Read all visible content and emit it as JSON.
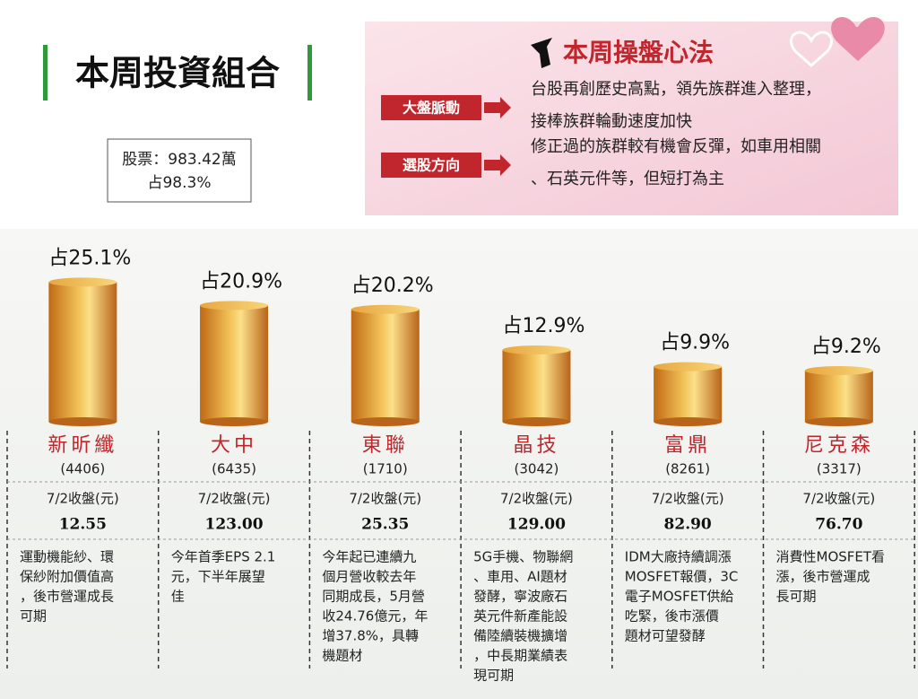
{
  "header": {
    "title": "本周投資組合",
    "stock_line": "股票：983.42萬",
    "share_line": "占98.3%"
  },
  "panel": {
    "title": "本周操盤心法",
    "items": [
      {
        "label": "大盤脈動",
        "lines": [
          "台股再創歷史高點，領先族群進入整理，",
          "接棒族群輪動速度加快"
        ]
      },
      {
        "label": "選股方向",
        "lines": [
          "修正過的族群較有機會反彈，如車用相關",
          "、石英元件等，但短打為主"
        ]
      }
    ]
  },
  "chart_data": {
    "type": "bar",
    "color": "#d9902a",
    "categories": [
      "新昕纖",
      "大中",
      "東聯",
      "晶技",
      "富鼎",
      "尼克森"
    ],
    "values": [
      25.1,
      20.9,
      20.2,
      12.9,
      9.9,
      9.2
    ],
    "value_labels": [
      "占25.1%",
      "占20.9%",
      "占20.2%",
      "占12.9%",
      "占9.9%",
      "占9.2%"
    ]
  },
  "table": {
    "price_header": "7/2收盤(元)",
    "codes": [
      "(4406)",
      "(6435)",
      "(1710)",
      "(3042)",
      "(8261)",
      "(3317)"
    ],
    "prices": [
      "12.55",
      "123.00",
      "25.35",
      "129.00",
      "82.90",
      "76.70"
    ],
    "notes": [
      [
        "運動機能紗、環",
        "保紗附加價值高",
        "，後市營運成長",
        "可期"
      ],
      [
        "今年首季EPS 2.1",
        "元，下半年展望",
        "佳"
      ],
      [
        "今年起已連續九",
        "個月營收較去年",
        "同期成長，5月營",
        "收24.76億元，年",
        "增37.8%，具轉",
        "機題材"
      ],
      [
        "5G手機、物聯網",
        "、車用、AI題材",
        "發酵，寧波廠石",
        "英元件新產能設",
        "備陸續裝機擴增",
        "，中長期業績表",
        "現可期"
      ],
      [
        "IDM大廠持續調漲",
        "MOSFET報價，3C",
        "電子MOSFET供給",
        "吃緊，後市漲價",
        "題材可望發酵"
      ],
      [
        "消費性MOSFET看",
        "漲，後市營運成",
        "長可期"
      ]
    ]
  }
}
